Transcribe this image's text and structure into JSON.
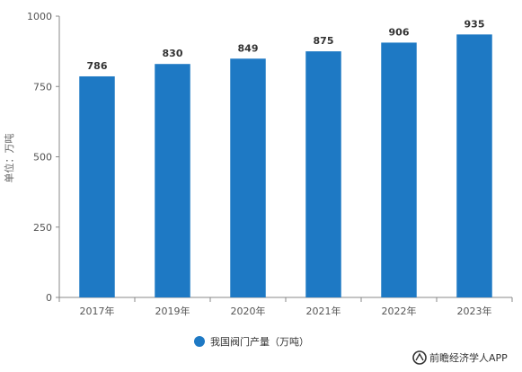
{
  "chart_data": {
    "type": "bar",
    "categories": [
      "2017年",
      "2019年",
      "2020年",
      "2021年",
      "2022年",
      "2023年"
    ],
    "series": [
      {
        "name": "我国阀门产量（万吨）",
        "values": [
          786,
          830,
          849,
          875,
          906,
          935
        ]
      }
    ],
    "ylabel": "单位：万吨",
    "ylim": [
      0,
      1000
    ],
    "yticks": [
      0,
      250,
      500,
      750,
      1000
    ],
    "grid": false,
    "legend": "bottom-center",
    "colors": {
      "bar": "#1E79C4",
      "axis": "#888888"
    }
  },
  "source": {
    "text": "前瞻经济学人APP",
    "icon": "qianzhan-logo-icon"
  }
}
